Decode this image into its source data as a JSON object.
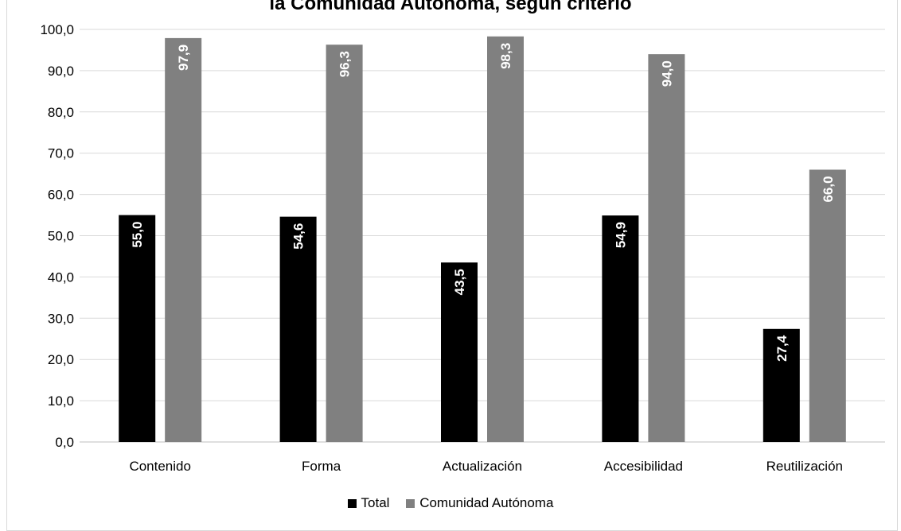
{
  "chart_data": {
    "type": "bar",
    "title": "la Comunidad Autónoma, según criterio",
    "categories": [
      "Contenido",
      "Forma",
      "Actualización",
      "Accesibilidad",
      "Reutilización"
    ],
    "series": [
      {
        "name": "Total",
        "values": [
          55.0,
          54.6,
          43.5,
          54.9,
          27.4
        ],
        "labels": [
          "55,0",
          "54,6",
          "43,5",
          "54,9",
          "27,4"
        ],
        "color": "#000000"
      },
      {
        "name": "Comunidad Autónoma",
        "values": [
          97.9,
          96.3,
          98.3,
          94.0,
          66.0
        ],
        "labels": [
          "97,9",
          "96,3",
          "98,3",
          "94,0",
          "66,0"
        ],
        "color": "#808080"
      }
    ],
    "ylim": [
      0,
      100
    ],
    "yticks": [
      "0,0",
      "10,0",
      "20,0",
      "30,0",
      "40,0",
      "50,0",
      "60,0",
      "70,0",
      "80,0",
      "90,0",
      "100,0"
    ],
    "grid": true,
    "legend_position": "bottom"
  }
}
